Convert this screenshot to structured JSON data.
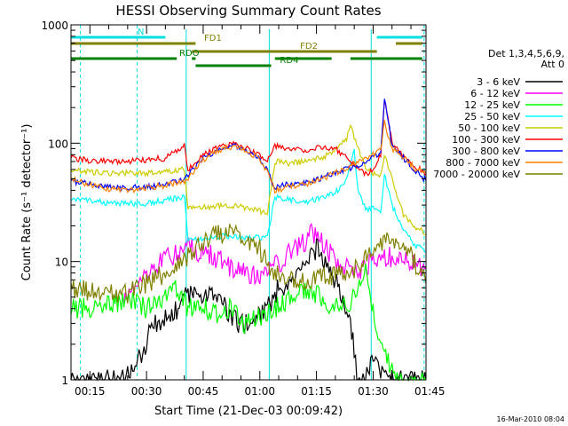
{
  "chart_data": {
    "type": "line",
    "title": "HESSI Observing Summary Count Rates",
    "ylabel": "Count Rate (s⁻¹ detector⁻¹)",
    "xlabel": "Start Time (21-Dec-03 00:09:42)",
    "yscale": "log",
    "ylim": [
      1,
      1000
    ],
    "xlim_minutes": [
      10,
      104
    ],
    "y_ticks": [
      {
        "value": 1,
        "label": "1"
      },
      {
        "value": 10,
        "label": "10"
      },
      {
        "value": 100,
        "label": "100"
      },
      {
        "value": 1000,
        "label": "1000"
      }
    ],
    "x_ticks": [
      {
        "minute": 15,
        "label": "00:15"
      },
      {
        "minute": 30,
        "label": "00:30"
      },
      {
        "minute": 45,
        "label": "00:45"
      },
      {
        "minute": 60,
        "label": "01:00"
      },
      {
        "minute": 75,
        "label": "01:15"
      },
      {
        "minute": 90,
        "label": "01:30"
      },
      {
        "minute": 105,
        "label": "01:45"
      }
    ],
    "legend_header": [
      "Det 1,3,4,5,6,9,",
      "Att 0"
    ],
    "series": [
      {
        "name": "3 - 6 keV",
        "color": "#000000",
        "points": [
          [
            10,
            1
          ],
          [
            24,
            1
          ],
          [
            28,
            1.5
          ],
          [
            32,
            3
          ],
          [
            37,
            3.5
          ],
          [
            40,
            5
          ],
          [
            43,
            5.2
          ],
          [
            46,
            5.5
          ],
          [
            50,
            4.5
          ],
          [
            54,
            3
          ],
          [
            58,
            3
          ],
          [
            62,
            4
          ],
          [
            65,
            6
          ],
          [
            68,
            6.5
          ],
          [
            72,
            9
          ],
          [
            75,
            13
          ],
          [
            78,
            9
          ],
          [
            82,
            5
          ],
          [
            84,
            3
          ],
          [
            86,
            1
          ],
          [
            88,
            1
          ],
          [
            90,
            1.6
          ],
          [
            93,
            1
          ],
          [
            104,
            1
          ]
        ]
      },
      {
        "name": "6 - 12 keV",
        "color": "#ff00ff",
        "points": [
          [
            24,
            5
          ],
          [
            27,
            6.5
          ],
          [
            31,
            8.5
          ],
          [
            35,
            10.5
          ],
          [
            39,
            12
          ],
          [
            41,
            14
          ],
          [
            44,
            12
          ],
          [
            48,
            11
          ],
          [
            52,
            9
          ],
          [
            56,
            8
          ],
          [
            60,
            7.5
          ],
          [
            63,
            9
          ],
          [
            66,
            10
          ],
          [
            69,
            13
          ],
          [
            72,
            15
          ],
          [
            74,
            18
          ],
          [
            77,
            14
          ],
          [
            80,
            10
          ],
          [
            83,
            9
          ],
          [
            86,
            8.5
          ],
          [
            89,
            9.5
          ],
          [
            92,
            10.5
          ],
          [
            95,
            11
          ],
          [
            99,
            10
          ],
          [
            104,
            9
          ]
        ]
      },
      {
        "name": "12 - 25 keV",
        "color": "#00ff00",
        "points": [
          [
            10,
            4
          ],
          [
            16,
            4
          ],
          [
            22,
            4.5
          ],
          [
            26,
            4.5
          ],
          [
            30,
            4
          ],
          [
            34,
            5
          ],
          [
            38,
            6
          ],
          [
            41,
            4
          ],
          [
            44,
            4.5
          ],
          [
            48,
            3.5
          ],
          [
            52,
            4
          ],
          [
            56,
            3
          ],
          [
            60,
            3.5
          ],
          [
            64,
            4
          ],
          [
            68,
            5
          ],
          [
            72,
            6
          ],
          [
            76,
            5
          ],
          [
            80,
            4
          ],
          [
            84,
            4.5
          ],
          [
            86,
            6
          ],
          [
            88,
            8
          ],
          [
            90,
            4
          ],
          [
            92,
            2
          ],
          [
            96,
            1
          ],
          [
            104,
            1
          ]
        ]
      },
      {
        "name": "25 - 50 keV",
        "color": "#00ffff",
        "points": [
          [
            10,
            34
          ],
          [
            15,
            33
          ],
          [
            20,
            31
          ],
          [
            25,
            31
          ],
          [
            30,
            31
          ],
          [
            35,
            33
          ],
          [
            40,
            35
          ],
          [
            41,
            15
          ],
          [
            45,
            15.5
          ],
          [
            50,
            16.5
          ],
          [
            55,
            16
          ],
          [
            60,
            16
          ],
          [
            62,
            16
          ],
          [
            64,
            35
          ],
          [
            68,
            33
          ],
          [
            72,
            32
          ],
          [
            76,
            34
          ],
          [
            80,
            38
          ],
          [
            83,
            50
          ],
          [
            85,
            85
          ],
          [
            86,
            40
          ],
          [
            88,
            28
          ],
          [
            90,
            28
          ],
          [
            92,
            25
          ],
          [
            93,
            55
          ],
          [
            95,
            30
          ],
          [
            98,
            18
          ],
          [
            101,
            14
          ],
          [
            104,
            12
          ]
        ]
      },
      {
        "name": "50 - 100 keV",
        "color": "#cccc00",
        "points": [
          [
            10,
            60
          ],
          [
            15,
            57
          ],
          [
            20,
            56
          ],
          [
            25,
            56
          ],
          [
            30,
            56
          ],
          [
            35,
            57
          ],
          [
            40,
            60
          ],
          [
            41,
            28
          ],
          [
            45,
            28.5
          ],
          [
            50,
            30
          ],
          [
            55,
            29
          ],
          [
            60,
            27
          ],
          [
            62,
            25
          ],
          [
            64,
            70
          ],
          [
            68,
            68
          ],
          [
            72,
            70
          ],
          [
            76,
            75
          ],
          [
            80,
            85
          ],
          [
            83,
            110
          ],
          [
            84,
            140
          ],
          [
            86,
            90
          ],
          [
            88,
            60
          ],
          [
            90,
            55
          ],
          [
            92,
            52
          ],
          [
            93,
            80
          ],
          [
            95,
            50
          ],
          [
            98,
            25
          ],
          [
            101,
            20
          ],
          [
            104,
            17
          ]
        ]
      },
      {
        "name": "100 - 300 keV",
        "color": "#ff0000",
        "points": [
          [
            10,
            75
          ],
          [
            15,
            71
          ],
          [
            20,
            70
          ],
          [
            25,
            70
          ],
          [
            30,
            72
          ],
          [
            35,
            75
          ],
          [
            40,
            95
          ],
          [
            41,
            60
          ],
          [
            45,
            80
          ],
          [
            50,
            95
          ],
          [
            53,
            98
          ],
          [
            56,
            92
          ],
          [
            60,
            80
          ],
          [
            62,
            72
          ],
          [
            64,
            95
          ],
          [
            68,
            90
          ],
          [
            72,
            88
          ],
          [
            76,
            92
          ],
          [
            80,
            90
          ],
          [
            84,
            72
          ],
          [
            86,
            60
          ],
          [
            88,
            55
          ],
          [
            90,
            60
          ],
          [
            92,
            80
          ],
          [
            93,
            240
          ],
          [
            95,
            100
          ],
          [
            98,
            80
          ],
          [
            101,
            65
          ],
          [
            104,
            55
          ]
        ]
      },
      {
        "name": "300 - 800 keV",
        "color": "#0000ff",
        "points": [
          [
            10,
            48
          ],
          [
            15,
            45
          ],
          [
            20,
            43
          ],
          [
            25,
            42
          ],
          [
            30,
            43
          ],
          [
            35,
            45
          ],
          [
            40,
            50
          ],
          [
            45,
            75
          ],
          [
            50,
            92
          ],
          [
            53,
            96
          ],
          [
            56,
            90
          ],
          [
            60,
            75
          ],
          [
            62,
            58
          ],
          [
            64,
            42
          ],
          [
            68,
            45
          ],
          [
            72,
            47
          ],
          [
            76,
            50
          ],
          [
            80,
            56
          ],
          [
            84,
            62
          ],
          [
            86,
            65
          ],
          [
            88,
            70
          ],
          [
            90,
            76
          ],
          [
            92,
            85
          ],
          [
            93,
            250
          ],
          [
            95,
            95
          ],
          [
            98,
            75
          ],
          [
            101,
            60
          ],
          [
            104,
            48
          ]
        ]
      },
      {
        "name": "800 - 7000 keV",
        "color": "#ff8000",
        "points": [
          [
            10,
            50
          ],
          [
            15,
            44
          ],
          [
            20,
            41
          ],
          [
            25,
            40
          ],
          [
            30,
            42
          ],
          [
            35,
            44
          ],
          [
            40,
            47
          ],
          [
            45,
            72
          ],
          [
            50,
            90
          ],
          [
            53,
            94
          ],
          [
            56,
            88
          ],
          [
            60,
            74
          ],
          [
            62,
            58
          ],
          [
            64,
            40
          ],
          [
            68,
            43
          ],
          [
            72,
            45
          ],
          [
            76,
            49
          ],
          [
            80,
            56
          ],
          [
            84,
            64
          ],
          [
            86,
            70
          ],
          [
            88,
            76
          ],
          [
            90,
            80
          ],
          [
            92,
            88
          ],
          [
            93,
            150
          ],
          [
            95,
            90
          ],
          [
            98,
            75
          ],
          [
            101,
            62
          ],
          [
            104,
            55
          ]
        ]
      },
      {
        "name": "7000 - 20000 keV",
        "color": "#808000",
        "points": [
          [
            10,
            6
          ],
          [
            15,
            5.5
          ],
          [
            20,
            5.2
          ],
          [
            25,
            5.3
          ],
          [
            30,
            6.5
          ],
          [
            35,
            8
          ],
          [
            39,
            9.5
          ],
          [
            42,
            12
          ],
          [
            45,
            15
          ],
          [
            49,
            17
          ],
          [
            52,
            18
          ],
          [
            55,
            17
          ],
          [
            59,
            14
          ],
          [
            62,
            10
          ],
          [
            64,
            8
          ],
          [
            68,
            7.5
          ],
          [
            72,
            7
          ],
          [
            76,
            7.2
          ],
          [
            80,
            7.5
          ],
          [
            84,
            8
          ],
          [
            87,
            10
          ],
          [
            89,
            12
          ],
          [
            91,
            14
          ],
          [
            93,
            15
          ],
          [
            96,
            14.5
          ],
          [
            99,
            12
          ],
          [
            102,
            9
          ],
          [
            104,
            6.5
          ]
        ]
      }
    ],
    "flag_bars": [
      {
        "label": "N",
        "color": "#00e0e0",
        "row": 1,
        "segments": [
          [
            10,
            35
          ],
          [
            91,
            103
          ]
        ]
      },
      {
        "label": "FD1",
        "color": "#808000",
        "row": 2,
        "segments": [
          [
            10,
            43
          ],
          [
            96,
            103
          ]
        ]
      },
      {
        "label": "FD2",
        "color": "#808000",
        "row": 3,
        "segments": [
          [
            42,
            91
          ]
        ]
      },
      {
        "label": "RDO",
        "color": "#008000",
        "row": 4,
        "segments": [
          [
            10,
            38
          ],
          [
            42,
            43
          ],
          [
            64,
            79
          ],
          [
            84,
            103
          ]
        ]
      },
      {
        "label": "RD4",
        "color": "#008000",
        "row": 5,
        "segments": [
          [
            43,
            63
          ]
        ]
      }
    ],
    "saa_lines_minutes": [
      12.5,
      27.5,
      103.5
    ],
    "night_lines_minutes": [
      40.5,
      62.5,
      89.5
    ]
  },
  "footer": {
    "timestamp": "16-Mar-2010 08:04"
  }
}
